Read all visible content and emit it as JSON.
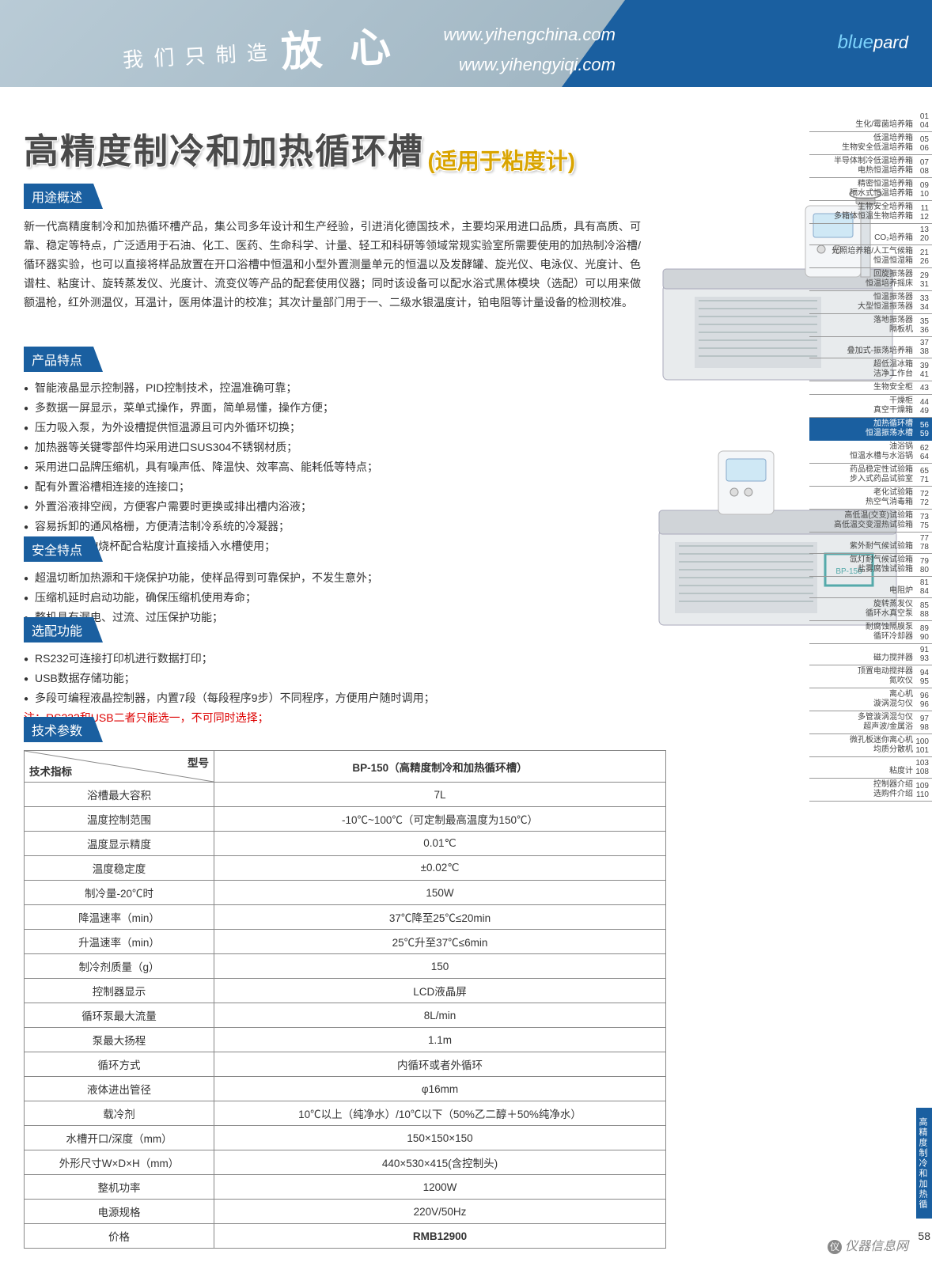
{
  "header": {
    "slogan_small": "我 们 只 制 造",
    "slogan_big": "放 心",
    "url1": "www.yihengchina.com",
    "url2": "www.yihengyiqi.com",
    "brand_prefix": "blue",
    "brand_suffix": "pard"
  },
  "title": {
    "main": "高精度制冷和加热循环槽",
    "sub": "(适用于粘度计)"
  },
  "sections": {
    "usage_label": "用途概述",
    "features_label": "产品特点",
    "safety_label": "安全特点",
    "optional_label": "选配功能",
    "specs_label": "技术参数"
  },
  "usage_text": "新一代高精度制冷和加热循环槽产品，集公司多年设计和生产经验，引进消化德国技术，主要均采用进口品质，具有高质、可靠、稳定等特点，广泛适用于石油、化工、医药、生命科学、计量、轻工和科研等领域常规实验室所需要使用的加热制冷浴槽/循环器实验，也可以直接将样品放置在开口浴槽中恒温和小型外置测量单元的恒温以及发酵罐、旋光仪、电泳仪、光度计、色谱柱、粘度计、旋转蒸发仪、光度计、流变仪等产品的配套使用仪器；同时该设备可以配水浴式黑体模块（选配）可以用来做额温枪，红外测温仪，耳温计，医用体温计的校准；其次计量部门用于一、二级水银温度计，铂电阻等计量设备的检测校准。",
  "features": [
    "智能液晶显示控制器，PID控制技术，控温准确可靠；",
    "多数据一屏显示，菜单式操作，界面，简单易懂，操作方便；",
    "压力吸入泵，为外设槽提供恒温源且可内外循环切换；",
    "加热器等关键零部件均采用进口SUS304不锈钢材质；",
    "采用进口品牌压缩机，具有噪声低、降温快、效率高、能耗低等特点；",
    "配有外置浴槽相连接的连接口；",
    "外置浴液排空阀，方便客户需要时更换或排出槽内浴液；",
    "容易拆卸的通风格栅，方便清洁制冷系统的冷凝器；",
    "可容纳500ml烧杯配合粘度计直接插入水槽使用；"
  ],
  "safety": [
    "超温切断加热源和干烧保护功能，使样品得到可靠保护，不发生意外；",
    "压缩机延时启动功能，确保压缩机使用寿命；",
    "整机具有漏电、过流、过压保护功能；"
  ],
  "optional": [
    "RS232可连接打印机进行数据打印；",
    "USB数据存储功能；",
    "多段可编程液晶控制器，内置7段（每段程序9步）不同程序，方便用户随时调用；"
  ],
  "optional_note": "注：RS232和USB二者只能选一，不可同时选择；",
  "spec_table": {
    "header_left": "技术指标",
    "header_right": "型号",
    "model_col": "BP-150（高精度制冷和加热循环槽）",
    "rows": [
      [
        "浴槽最大容积",
        "7L"
      ],
      [
        "温度控制范围",
        "-10℃~100℃（可定制最高温度为150℃）"
      ],
      [
        "温度显示精度",
        "0.01℃"
      ],
      [
        "温度稳定度",
        "±0.02℃"
      ],
      [
        "制冷量-20℃时",
        "150W"
      ],
      [
        "降温速率（min）",
        "37℃降至25℃≤20min"
      ],
      [
        "升温速率（min）",
        "25℃升至37℃≤6min"
      ],
      [
        "制冷剂质量（g）",
        "150"
      ],
      [
        "控制器显示",
        "LCD液晶屏"
      ],
      [
        "循环泵最大流量",
        "8L/min"
      ],
      [
        "泵最大扬程",
        "1.1m"
      ],
      [
        "循环方式",
        "内循环或者外循环"
      ],
      [
        "液体进出管径",
        "φ16mm"
      ],
      [
        "载冷剂",
        "10℃以上（纯净水）/10℃以下（50%乙二醇＋50%纯净水）"
      ],
      [
        "水槽开口/深度（mm）",
        "150×150×150"
      ],
      [
        "外形尺寸W×D×H（mm）",
        "440×530×415(含控制头)"
      ],
      [
        "整机功率",
        "1200W"
      ],
      [
        "电源规格",
        "220V/50Hz"
      ],
      [
        "价格",
        "RMB12900"
      ]
    ]
  },
  "sidebar": [
    {
      "t": "生化/霉菌培养箱",
      "n": "01\n04"
    },
    {
      "t": "低温培养箱\n生物安全低温培养箱",
      "n": "05\n06"
    },
    {
      "t": "半导体制冷低温培养箱\n电热恒温培养箱",
      "n": "07\n08"
    },
    {
      "t": "精密恒温培养箱\n隔水式恒温培养箱",
      "n": "09\n10"
    },
    {
      "t": "生物安全培养箱\n多箱体恒温生物培养箱",
      "n": "11\n12"
    },
    {
      "t": "CO₂培养箱",
      "n": "13\n20"
    },
    {
      "t": "光照培养箱/人工气候箱\n恒温恒湿箱",
      "n": "21\n26"
    },
    {
      "t": "回旋振荡器\n恒温培养摇床",
      "n": "29\n31"
    },
    {
      "t": "恒温振荡器\n大型恒温振荡器",
      "n": "33\n34"
    },
    {
      "t": "落地振荡器\n隔板机",
      "n": "35\n36"
    },
    {
      "t": "叠加式-振荡培养箱",
      "n": "37\n38"
    },
    {
      "t": "超低温冰箱\n洁净工作台",
      "n": "39\n41"
    },
    {
      "t": "生物安全柜",
      "n": "43"
    },
    {
      "t": "干燥柜\n真空干燥箱",
      "n": "44\n49"
    },
    {
      "t": "加热循环槽\n恒温振荡水槽",
      "n": "56\n59",
      "hl": true
    },
    {
      "t": "油浴锅\n恒温水槽与水浴锅",
      "n": "62\n64"
    },
    {
      "t": "药品稳定性试验箱\n步入式药品试验室",
      "n": "65\n71"
    },
    {
      "t": "老化试验箱\n热空气消毒箱",
      "n": "72\n72"
    },
    {
      "t": "高低温(交变)试验箱\n高低温交变湿热试验箱",
      "n": "73\n75"
    },
    {
      "t": "紫外耐气候试验箱",
      "n": "77\n78"
    },
    {
      "t": "氙灯耐气候试验箱\n盐雾腐蚀试验箱",
      "n": "79\n80"
    },
    {
      "t": "电阻炉",
      "n": "81\n84"
    },
    {
      "t": "旋转蒸发仪\n循环水真空泵",
      "n": "85\n88"
    },
    {
      "t": "耐腐蚀隔膜泵\n循环冷却器",
      "n": "89\n90"
    },
    {
      "t": "磁力搅拌器",
      "n": "91\n93"
    },
    {
      "t": "顶置电动搅拌器\n氮吹仪",
      "n": "94\n95"
    },
    {
      "t": "离心机\n漩涡混匀仪",
      "n": "96\n96"
    },
    {
      "t": "多管漩涡混匀仪\n超声波/金属浴",
      "n": "97\n98"
    },
    {
      "t": "微孔板迷你离心机\n均质分散机",
      "n": "100\n101"
    },
    {
      "t": "粘度计",
      "n": "103\n108"
    },
    {
      "t": "控制器介绍\n选购件介绍",
      "n": "109\n110"
    }
  ],
  "page_tab": "高精度制冷和加热循环槽",
  "page_num": "58",
  "watermark": "仪器信息网"
}
